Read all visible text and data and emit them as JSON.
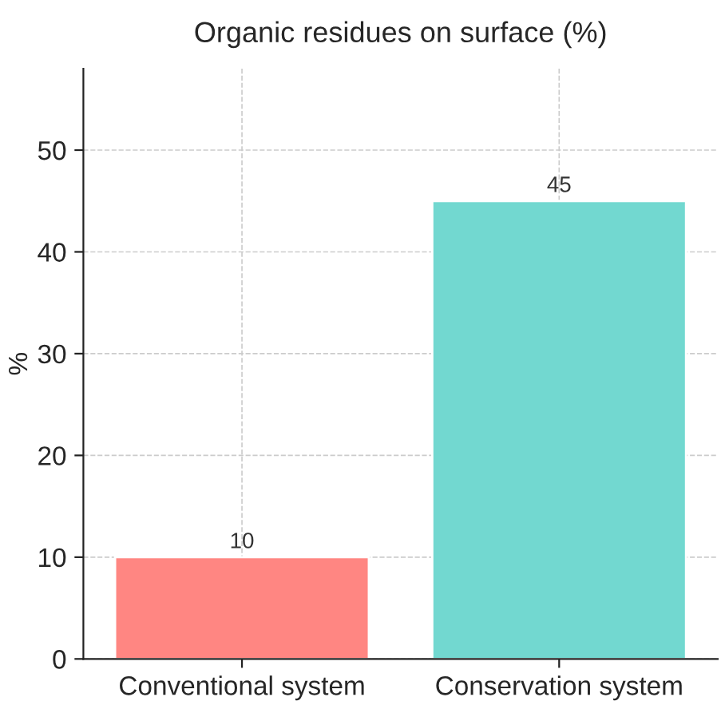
{
  "chart_data": {
    "type": "bar",
    "title": "Organic residues on surface (%)",
    "ylabel": "%",
    "categories": [
      "Conventional system",
      "Conservation system"
    ],
    "values": [
      10,
      45
    ],
    "colors": [
      "#ff8682",
      "#72d8d0"
    ],
    "data_labels": true,
    "ylim": [
      0,
      58
    ],
    "yticks": [
      0,
      10,
      20,
      30,
      40,
      50
    ],
    "grid": true
  }
}
